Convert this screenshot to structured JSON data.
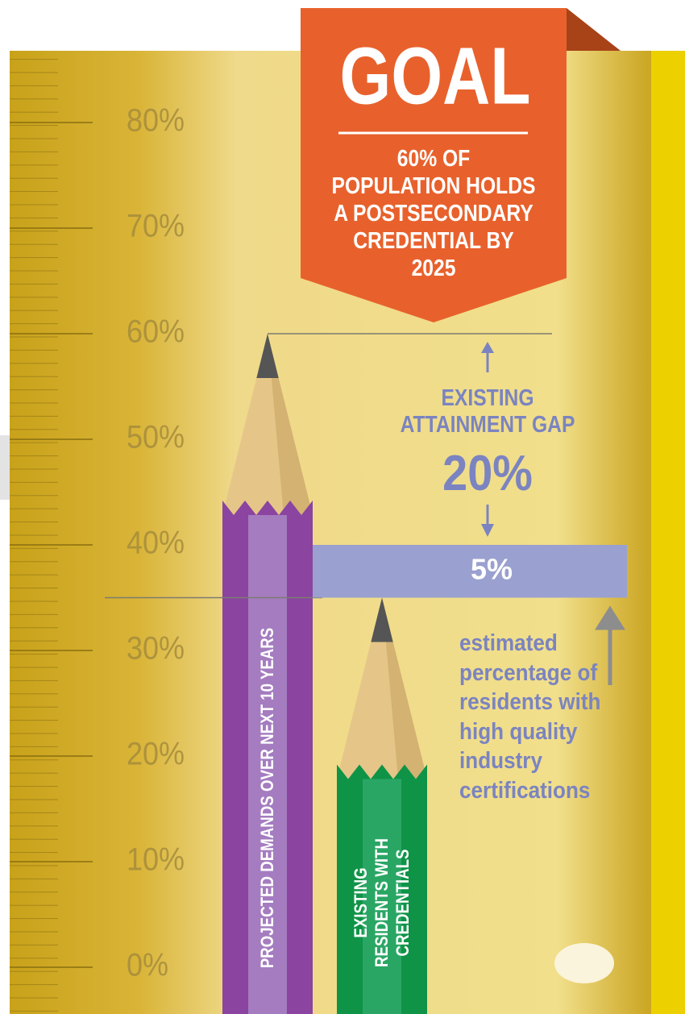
{
  "chart_data": {
    "type": "pencil",
    "goal": {
      "title": "GOAL",
      "text": "60% OF POPULATION HOLDS A POSTSECONDARY CREDENTIAL BY 2025"
    },
    "categories": [
      "PROJECTED DEMANDS OVER NEXT 10 YEARS",
      "EXISTING RESIDENTS WITH CREDENTIALS"
    ],
    "values": [
      60,
      35
    ],
    "colors": [
      "#8b44a0",
      "#0f9347"
    ],
    "gap": {
      "label": "EXISTING ATTAINMENT GAP",
      "value": 20,
      "value_label": "20%"
    },
    "certifications": {
      "value": 5,
      "value_label": "5%",
      "label": "estimated percentage of residents with high quality industry certifications",
      "color": "#9aa0cf"
    },
    "ylim": [
      0,
      80
    ],
    "yticks": [
      {
        "value": 0,
        "label": "0%"
      },
      {
        "value": 10,
        "label": "10%"
      },
      {
        "value": 20,
        "label": "20%"
      },
      {
        "value": 30,
        "label": "30%"
      },
      {
        "value": 40,
        "label": "40%"
      },
      {
        "value": 50,
        "label": "50%"
      },
      {
        "value": 60,
        "label": "60%"
      },
      {
        "value": 70,
        "label": "70%"
      },
      {
        "value": 80,
        "label": "80%"
      }
    ]
  }
}
